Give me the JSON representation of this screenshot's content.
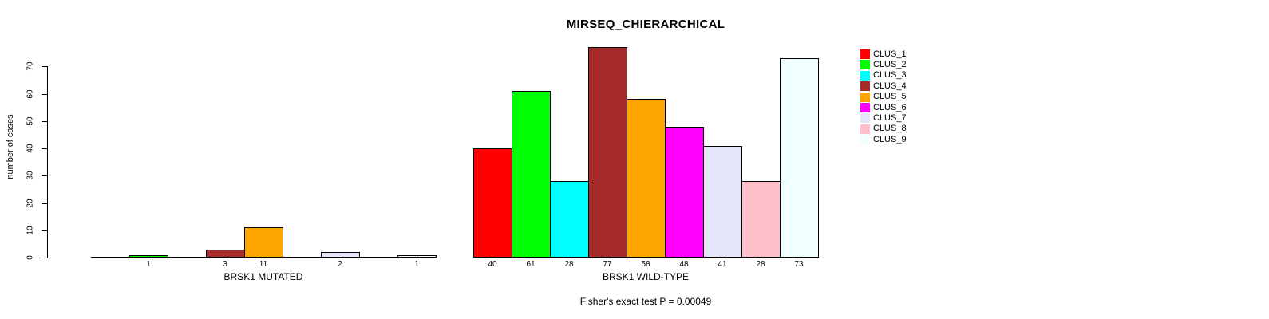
{
  "chart_data": {
    "type": "bar",
    "title": "MIRSEQ_CHIERARCHICAL",
    "ylabel": "number of cases",
    "xlabel": "",
    "ylim": [
      0,
      77
    ],
    "yticks": [
      0,
      10,
      20,
      30,
      40,
      50,
      60,
      70
    ],
    "grid": false,
    "legend_position": "right",
    "clusters": [
      "CLUS_1",
      "CLUS_2",
      "CLUS_3",
      "CLUS_4",
      "CLUS_5",
      "CLUS_6",
      "CLUS_7",
      "CLUS_8",
      "CLUS_9"
    ],
    "colors": [
      "#FF0000",
      "#00FF00",
      "#00FFFF",
      "#A52A2A",
      "#FFA500",
      "#FF00FF",
      "#E6E6FA",
      "#FFC0CB",
      "#F0FFFF"
    ],
    "groups": [
      {
        "label": "BRSK1 MUTATED",
        "values": [
          0,
          1,
          0,
          3,
          11,
          0,
          2,
          0,
          1
        ]
      },
      {
        "label": "BRSK1 WILD-TYPE",
        "values": [
          40,
          61,
          28,
          77,
          58,
          48,
          41,
          28,
          73
        ]
      }
    ],
    "annotation": "Fisher's exact test P = 0.00049"
  }
}
